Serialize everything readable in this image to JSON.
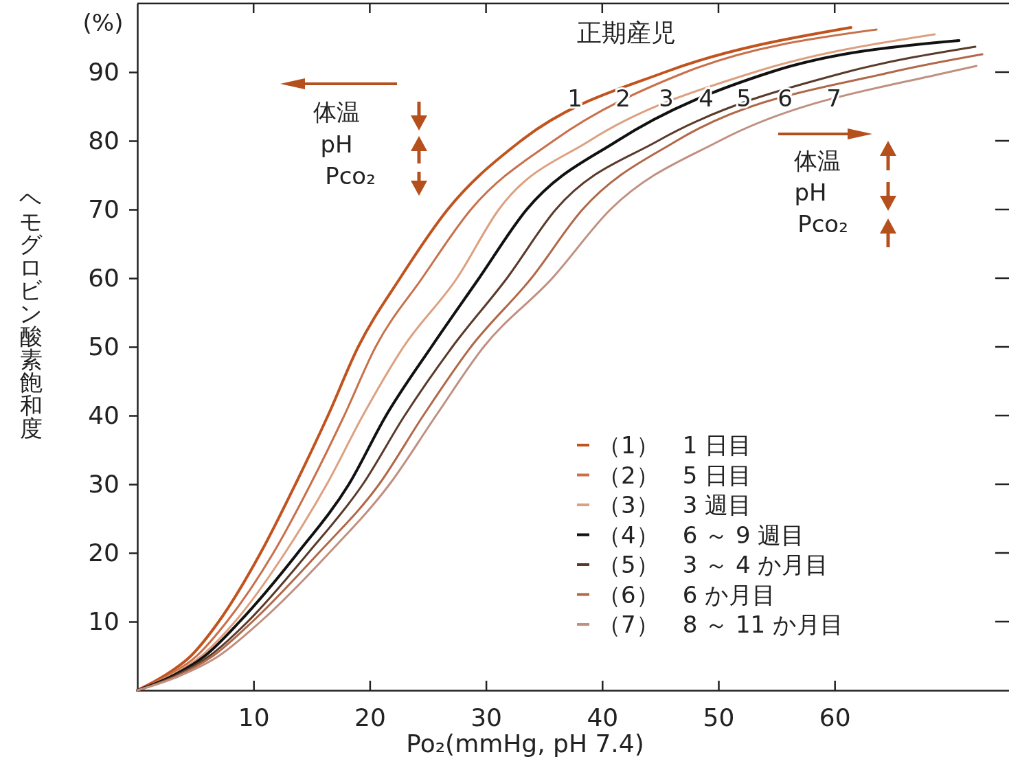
{
  "chart_data": {
    "type": "line",
    "title": "正期産児",
    "xlabel": "Po₂(mmHg, pH 7.4)",
    "ylabel": "ヘモグロビン酸素飽和度",
    "xlim": [
      0,
      75
    ],
    "ylim": [
      0,
      100
    ],
    "xticks": [
      10,
      20,
      30,
      40,
      50,
      60
    ],
    "yticks": [
      10,
      20,
      30,
      40,
      50,
      60,
      70,
      80,
      90
    ],
    "grid": false,
    "legend": "bottom right",
    "marker": "none",
    "line_style": "solid",
    "series": [
      {
        "name": "（1）　1 日目",
        "color": "#c0531e",
        "x": [
          0,
          2.2,
          4.6,
          7.0,
          10.6,
          13.6,
          16.4,
          19.0,
          22.6,
          26.7,
          33.0,
          45.4,
          61.4
        ],
        "values": [
          0,
          2,
          5,
          10,
          20,
          30,
          40,
          50,
          60,
          70,
          80,
          90,
          96.5
        ]
      },
      {
        "name": "（2）　5 日目",
        "color": "#c8704a",
        "x": [
          0,
          2.5,
          5.1,
          7.7,
          11.7,
          14.9,
          17.8,
          20.5,
          24.5,
          28.7,
          35.8,
          47.2,
          63.6
        ],
        "values": [
          0,
          2,
          5,
          10,
          20,
          30,
          40,
          50,
          60,
          70,
          80,
          90,
          96.2
        ]
      },
      {
        "name": "（3）　3 週目",
        "color": "#dca080",
        "x": [
          0,
          2.7,
          5.5,
          8.4,
          12.7,
          16.3,
          19.4,
          22.9,
          27.5,
          31.1,
          38.9,
          53.1,
          68.6
        ],
        "values": [
          0,
          2,
          5,
          10,
          20,
          30,
          40,
          50,
          60,
          70,
          80,
          90,
          95.5
        ]
      },
      {
        "name": "（4）　6 ～ 9 週目",
        "color": "#111111",
        "x": [
          0,
          2.9,
          5.8,
          8.8,
          13.8,
          18.2,
          21.4,
          25.3,
          29.4,
          33.5,
          41.3,
          54.5,
          70.7
        ],
        "values": [
          0,
          2,
          5,
          10,
          20,
          30,
          40,
          50,
          60,
          70,
          80,
          90,
          94.6
        ]
      },
      {
        "name": "（5）　3 ～ 4 か月目",
        "color": "#5a3a2a",
        "x": [
          0,
          3.1,
          6.2,
          9.5,
          14.7,
          19.4,
          23.0,
          27.1,
          31.8,
          36.0,
          44.8,
          61.0,
          72.1
        ],
        "values": [
          0,
          2,
          5,
          10,
          20,
          30,
          40,
          50,
          60,
          70,
          80,
          90,
          93.7
        ]
      },
      {
        "name": "（6）　6 か月目",
        "color": "#b06848",
        "x": [
          0,
          3.3,
          6.5,
          9.9,
          15.6,
          20.8,
          24.6,
          28.7,
          33.9,
          38.3,
          46.4,
          64.9,
          72.7
        ],
        "values": [
          0,
          2,
          5,
          10,
          20,
          30,
          40,
          50,
          60,
          70,
          80,
          90,
          92.6
        ]
      },
      {
        "name": "（7）　8 ～ 11 か月目",
        "color": "#c09080",
        "x": [
          0,
          3.5,
          7.0,
          10.6,
          16.5,
          21.7,
          25.7,
          29.8,
          35.7,
          40.7,
          50.1,
          69.8,
          72.2
        ],
        "values": [
          0,
          2,
          5,
          10,
          20,
          30,
          40,
          50,
          60,
          70,
          80,
          90,
          90.9
        ]
      }
    ],
    "annotations": [
      "(%)",
      "1",
      "2",
      "3",
      "4",
      "5",
      "6",
      "7",
      "体温",
      "pH",
      "Pco₂",
      "体温",
      "pH",
      "Pco₂"
    ]
  }
}
